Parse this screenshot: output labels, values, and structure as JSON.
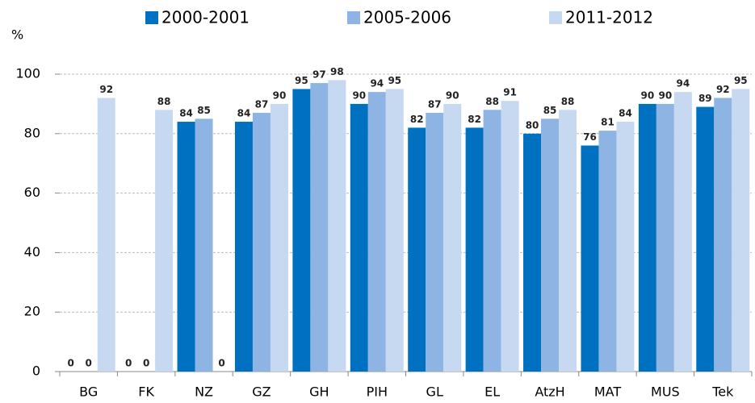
{
  "chart_data": {
    "type": "bar",
    "y_label": "%",
    "categories": [
      "BG",
      "FK",
      "NZ",
      "GZ",
      "GH",
      "PIH",
      "GL",
      "EL",
      "AtzH",
      "MAT",
      "MUS",
      "Tek"
    ],
    "series": [
      {
        "name": "2000-2001",
        "color": "#0070c0",
        "values": [
          0,
          0,
          84,
          84,
          95,
          90,
          82,
          82,
          80,
          76,
          90,
          89
        ]
      },
      {
        "name": "2005-2006",
        "color": "#8eb4e3",
        "values": [
          0,
          0,
          85,
          87,
          97,
          94,
          87,
          88,
          85,
          81,
          90,
          92
        ]
      },
      {
        "name": "2011-2012",
        "color": "#c6d9f1",
        "values": [
          92,
          88,
          0,
          90,
          98,
          95,
          90,
          91,
          88,
          84,
          94,
          95
        ]
      }
    ],
    "ylim": [
      0,
      100
    ],
    "yticks": [
      0,
      20,
      40,
      60,
      80,
      100
    ],
    "grid": true,
    "legend": "top"
  }
}
